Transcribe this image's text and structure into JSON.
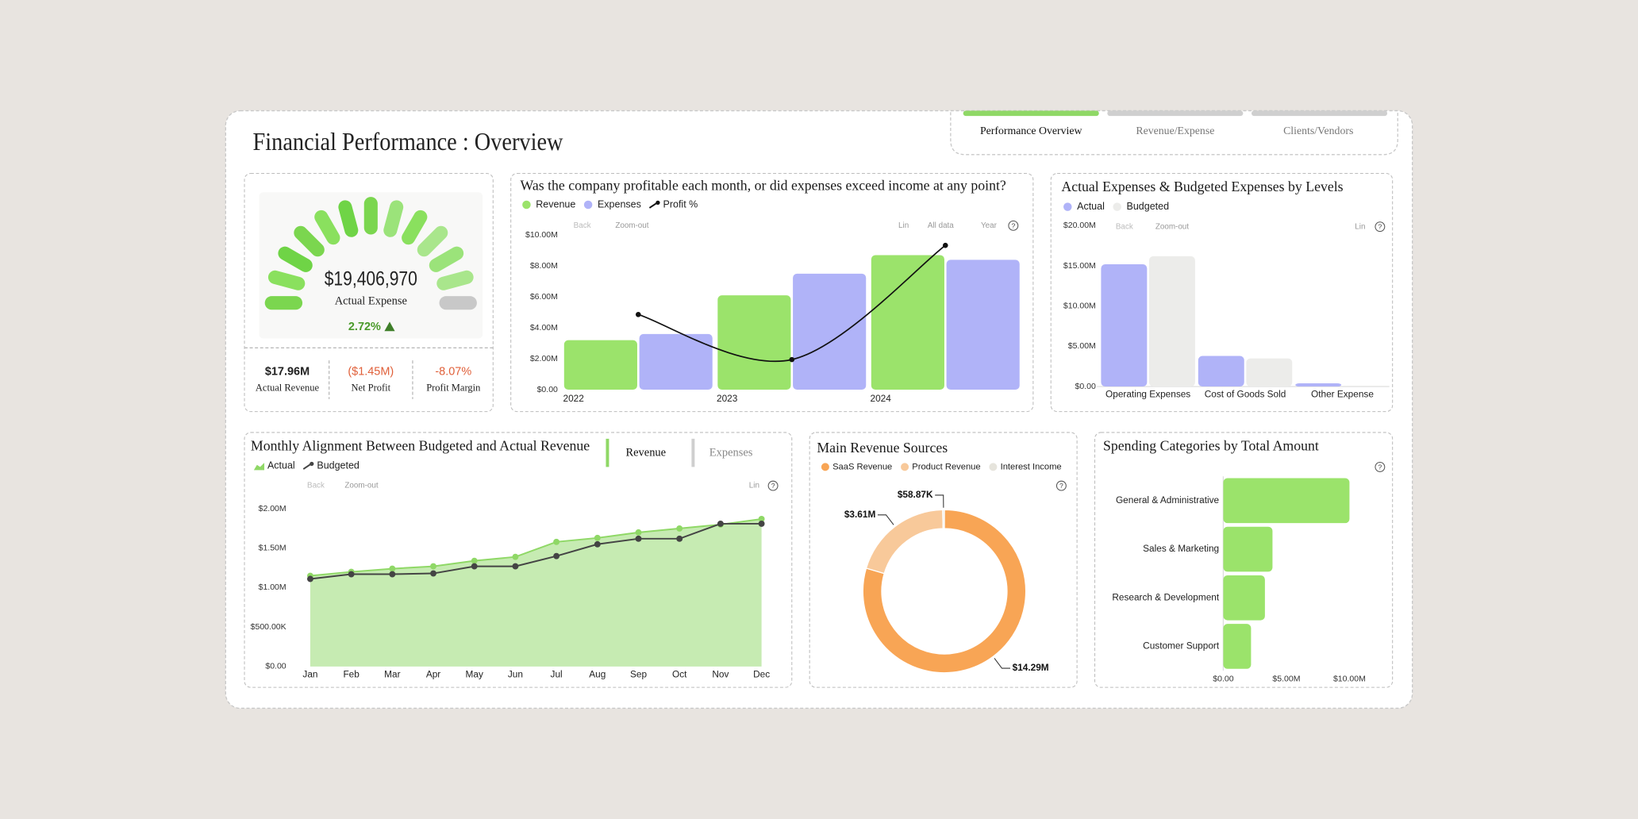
{
  "header": {
    "title": "Financial Performance : Overview"
  },
  "tabs": [
    "Performance Overview",
    "Revenue/Expense",
    "Clients/Vendors"
  ],
  "gauge": {
    "value": "$19,406,970",
    "label": "Actual Expense",
    "change": "2.72%"
  },
  "kpis": [
    {
      "value": "$17.96M",
      "label": "Actual Revenue"
    },
    {
      "value": "($1.45M)",
      "label": "Net Profit"
    },
    {
      "value": "-8.07%",
      "label": "Profit Margin"
    }
  ],
  "toolbar": {
    "back": "Back",
    "zoom": "Zoom-out",
    "lin": "Lin",
    "all": "All data",
    "year": "Year",
    "help": "?"
  },
  "toggle": [
    "Revenue",
    "Expenses"
  ],
  "chart_data": [
    {
      "type": "bar",
      "title": "Was the company profitable each month, or did expenses exceed income at any point?",
      "categories": [
        "2022",
        "2023",
        "2024"
      ],
      "series": [
        {
          "name": "Revenue",
          "color": "#9be36b",
          "values": [
            3200000,
            6100000,
            8700000
          ]
        },
        {
          "name": "Expenses",
          "color": "#b0b3f8",
          "values": [
            3600000,
            7500000,
            8400000
          ]
        },
        {
          "name": "Profit %",
          "type": "line",
          "axis": "y2",
          "color": "#111111",
          "values": [
            -12.5,
            -23,
            3.6
          ]
        }
      ],
      "ylim": [
        0,
        10000000
      ],
      "yticks": [
        {
          "value": 0,
          "label": "$0.00"
        },
        {
          "value": 2000000,
          "label": "$2.00M"
        },
        {
          "value": 4000000,
          "label": "$4.00M"
        },
        {
          "value": 6000000,
          "label": "$6.00M"
        },
        {
          "value": 8000000,
          "label": "$8.00M"
        },
        {
          "value": 10000000,
          "label": "$10.00M"
        }
      ],
      "y2lim": [
        -30,
        6
      ],
      "legend": "top-left"
    },
    {
      "type": "bar",
      "title": "Actual Expenses & Budgeted Expenses by Levels",
      "categories": [
        "Operating Expenses",
        "Cost of Goods Sold",
        "Other Expense"
      ],
      "series": [
        {
          "name": "Actual",
          "color": "#b0b3f8",
          "values": [
            15200000,
            3800000,
            400000
          ]
        },
        {
          "name": "Budgeted",
          "color": "#ececea",
          "values": [
            16200000,
            3500000,
            100000
          ]
        }
      ],
      "ylim": [
        0,
        20000000
      ],
      "yticks": [
        {
          "value": 0,
          "label": "$0.00"
        },
        {
          "value": 5000000,
          "label": "$5.00M"
        },
        {
          "value": 10000000,
          "label": "$10.00M"
        },
        {
          "value": 15000000,
          "label": "$15.00M"
        },
        {
          "value": 20000000,
          "label": "$20.00M"
        }
      ],
      "legend": "top-left"
    },
    {
      "type": "area",
      "title": "Monthly Alignment Between Budgeted and Actual Revenue",
      "categories": [
        "Jan",
        "Feb",
        "Mar",
        "Apr",
        "May",
        "Jun",
        "Jul",
        "Aug",
        "Sep",
        "Oct",
        "Nov",
        "Dec"
      ],
      "series": [
        {
          "name": "Actual",
          "type": "area",
          "color": "#8fd866",
          "fill": "#c6ebb2",
          "values": [
            1150000,
            1200000,
            1240000,
            1270000,
            1340000,
            1390000,
            1580000,
            1630000,
            1700000,
            1750000,
            1800000,
            1870000
          ]
        },
        {
          "name": "Budgeted",
          "type": "line",
          "color": "#444444",
          "values": [
            1110000,
            1170000,
            1170000,
            1180000,
            1270000,
            1270000,
            1400000,
            1550000,
            1620000,
            1620000,
            1810000,
            1810000
          ]
        }
      ],
      "ylim": [
        0,
        2000000
      ],
      "yticks": [
        {
          "value": 0,
          "label": "$0.00"
        },
        {
          "value": 500000,
          "label": "$500.00K"
        },
        {
          "value": 1000000,
          "label": "$1.00M"
        },
        {
          "value": 1500000,
          "label": "$1.50M"
        },
        {
          "value": 2000000,
          "label": "$2.00M"
        }
      ],
      "legend": "top-left"
    },
    {
      "type": "pie",
      "donut": true,
      "title": "Main Revenue Sources",
      "categories": [
        "SaaS Revenue",
        "Product Revenue",
        "Interest Income"
      ],
      "values": [
        14290000,
        3610000,
        58870
      ],
      "value_labels": [
        "$14.29M",
        "$3.61M",
        "$58.87K"
      ],
      "colors": [
        "#f8a555",
        "#f8c99a",
        "#e6e4dc"
      ],
      "legend": "top-left"
    },
    {
      "type": "bar",
      "orientation": "horizontal",
      "title": "Spending Categories by Total Amount",
      "categories": [
        "General & Administrative",
        "Sales & Marketing",
        "Research & Development",
        "Customer Support"
      ],
      "values": [
        10000000,
        3900000,
        3300000,
        2200000
      ],
      "color": "#9be36b",
      "xlim": [
        0,
        12500000
      ],
      "xticks": [
        {
          "value": 0,
          "label": "$0.00"
        },
        {
          "value": 5000000,
          "label": "$5.00M"
        },
        {
          "value": 10000000,
          "label": "$10.00M"
        }
      ]
    }
  ]
}
